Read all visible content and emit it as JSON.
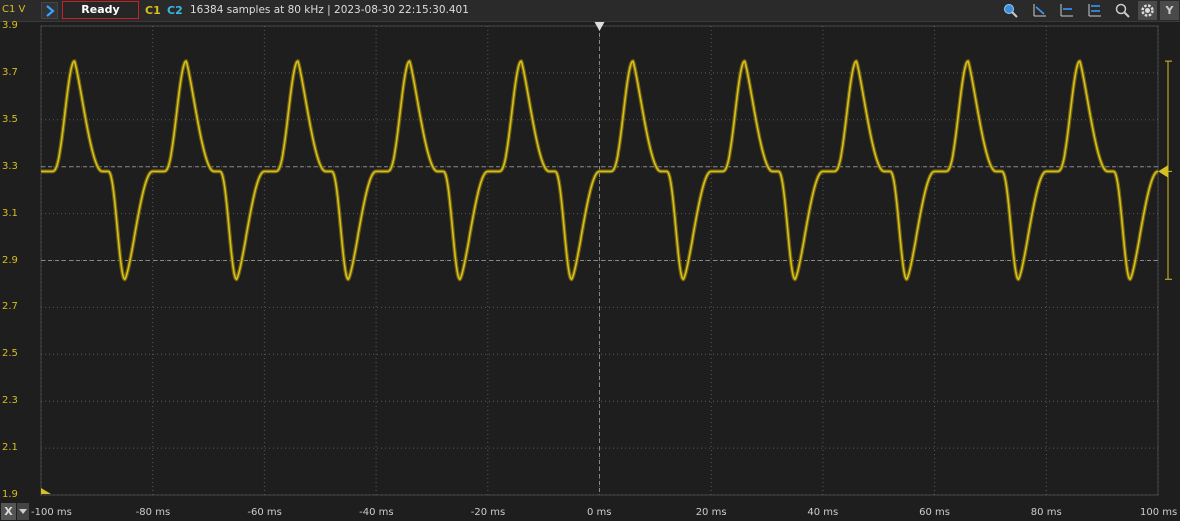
{
  "toolbar": {
    "channel_corner": "C1 V",
    "status": "Ready",
    "c1_label": "C1",
    "c2_label": "C2",
    "acquisition_info": "16384 samples at 80 kHz | 2023-08-30 22:15:30.401",
    "y_button": "Y",
    "tools": [
      "zoom-fit-icon",
      "cursor-x1-icon",
      "cursor-x2-icon",
      "cursor-y-icon",
      "zoom-icon",
      "gear-icon"
    ]
  },
  "x_axis_button": "X",
  "colors": {
    "c1": "#d8bf1f",
    "c2": "#39b8e8",
    "background": "#1e1e1e",
    "grid": "#6a6a6a",
    "status_border": "#c8202a"
  },
  "chart_data": {
    "type": "line",
    "xlim": [
      -100,
      100
    ],
    "ylim": [
      1.9,
      3.9
    ],
    "grid": true,
    "x_tick_labels": [
      "-100 ms",
      "-80 ms",
      "-60 ms",
      "-40 ms",
      "-20 ms",
      "0 ms",
      "20 ms",
      "40 ms",
      "60 ms",
      "80 ms",
      "100 ms"
    ],
    "y_tick_labels": [
      "3.9",
      "3.7",
      "3.5",
      "3.3",
      "3.1",
      "2.9",
      "2.7",
      "2.5",
      "2.3",
      "2.1",
      "1.9"
    ],
    "series": [
      {
        "name": "C1",
        "color": "#d8bf1f",
        "period_ms": 20,
        "baseline_v": 3.28,
        "peak_v": 3.75,
        "trough_v": 2.82,
        "peak_times_ms": [
          -94,
          -74,
          -54,
          -34,
          -14,
          6,
          26,
          46,
          66,
          86
        ],
        "trough_times_ms": [
          -85,
          -65,
          -45,
          -25,
          -5,
          15,
          35,
          55,
          75,
          95
        ]
      }
    ],
    "dashed_reference_lines_v": [
      3.3,
      2.9
    ],
    "dashed_reference_time_ms": 0,
    "marker_levels_v": {
      "top": 3.75,
      "offset": 3.28,
      "bottom": 2.82
    }
  }
}
